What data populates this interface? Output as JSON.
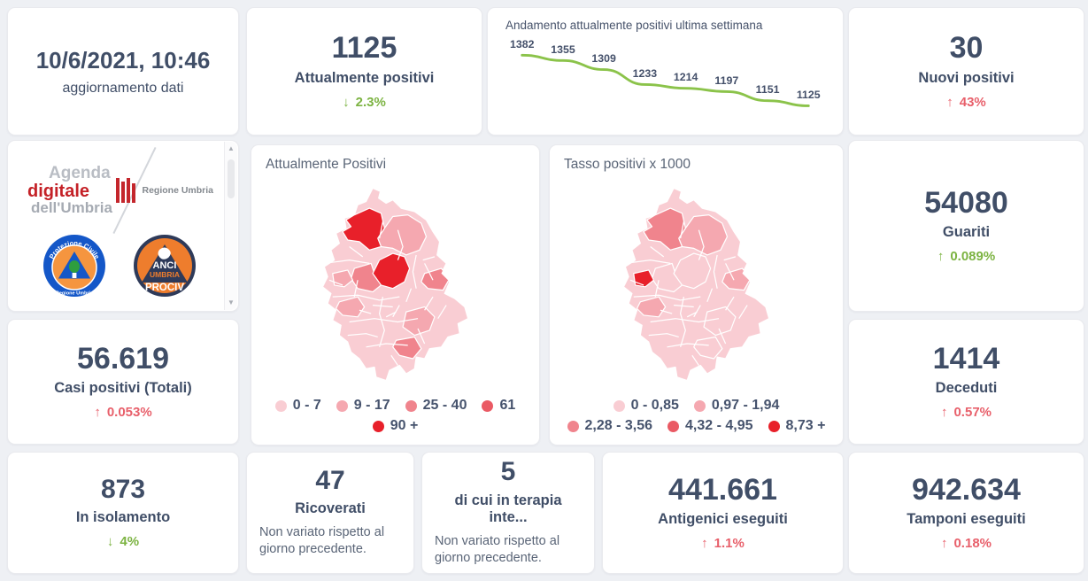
{
  "colors": {
    "navy_text": "#404e67",
    "positive_green": "#7cb342",
    "negative_red": "#e8606b",
    "page_background": "#eef0f4",
    "card_background": "#ffffff"
  },
  "palette": {
    "level1": "#f9cdd3",
    "level2": "#f5a8b0",
    "level3": "#f0848d",
    "level4": "#ea5a64",
    "level5": "#e8202a"
  },
  "cards": {
    "updated": {
      "value": "10/6/2021, 10:46",
      "label": "aggiornamento dati"
    },
    "attualmente": {
      "value": "1125",
      "label": "Attualmente positivi",
      "arrow": "↓",
      "delta": "2.3%"
    },
    "nuovi": {
      "value": "30",
      "label": "Nuovi positivi",
      "arrow": "↑",
      "delta": "43%"
    },
    "guariti": {
      "value": "54080",
      "label": "Guariti",
      "arrow": "↑",
      "delta": "0.089%"
    },
    "casi": {
      "value": "56.619",
      "label": "Casi positivi (Totali)",
      "arrow": "↑",
      "delta": "0.053%"
    },
    "deceduti": {
      "value": "1414",
      "label": "Deceduti",
      "arrow": "↑",
      "delta": "0.57%"
    },
    "isolamento": {
      "value": "873",
      "label": "In isolamento",
      "arrow": "↓",
      "delta": "4%"
    },
    "ricoverati": {
      "value": "47",
      "label": "Ricoverati",
      "note": "Non variato rispetto al giorno precedente."
    },
    "terapia": {
      "value": "5",
      "label": "di cui in terapia inte...",
      "note": "Non variato rispetto al giorno precedente."
    },
    "antigenici": {
      "value": "441.661",
      "label": "Antigenici eseguiti",
      "arrow": "↑",
      "delta": "1.1%"
    },
    "tamponi": {
      "value": "942.634",
      "label": "Tamponi eseguiti",
      "arrow": "↑",
      "delta": "0.18%"
    }
  },
  "chart_data": {
    "type": "line",
    "title": "Andamento attualmente positivi ultima settimana",
    "series": [
      {
        "name": "Attualmente positivi",
        "values": [
          1382,
          1355,
          1309,
          1233,
          1214,
          1197,
          1151,
          1125
        ]
      }
    ],
    "data_labels": true,
    "grid": false,
    "legend": "none",
    "ylim": [
      1125,
      1382
    ],
    "line_color": "#8bc34a",
    "label_color": "#44506a"
  },
  "maps": {
    "attualmente": {
      "title": "Attualmente Positivi",
      "legend": [
        {
          "label": "0 - 7",
          "color": "#f9cdd3"
        },
        {
          "label": "9 - 17",
          "color": "#f5a8b0"
        },
        {
          "label": "25 - 40",
          "color": "#f0848d"
        },
        {
          "label": "61",
          "color": "#ea5a64"
        },
        {
          "label": "90 +",
          "color": "#e8202a"
        }
      ]
    },
    "tasso": {
      "title": "Tasso positivi x 1000",
      "legend": [
        {
          "label": "0 - 0,85",
          "color": "#f9cdd3"
        },
        {
          "label": "0,97 - 1,94",
          "color": "#f5a8b0"
        },
        {
          "label": "2,28 - 3,56",
          "color": "#f0848d"
        },
        {
          "label": "4,32 - 4,95",
          "color": "#ea5a64"
        },
        {
          "label": "8,73 +",
          "color": "#e8202a"
        }
      ]
    }
  },
  "logos": {
    "agenda": {
      "line1": "Agenda",
      "line2": "digitale",
      "line3": "dell'Umbria"
    },
    "regione": {
      "label": "Regione Umbria"
    },
    "protezione_civile": {
      "top": "Protezione Civile",
      "bottom": "Regione Umbria"
    },
    "anci": {
      "line1": "ANCI",
      "line2": "UMBRIA",
      "line3": "PROCIV"
    }
  }
}
